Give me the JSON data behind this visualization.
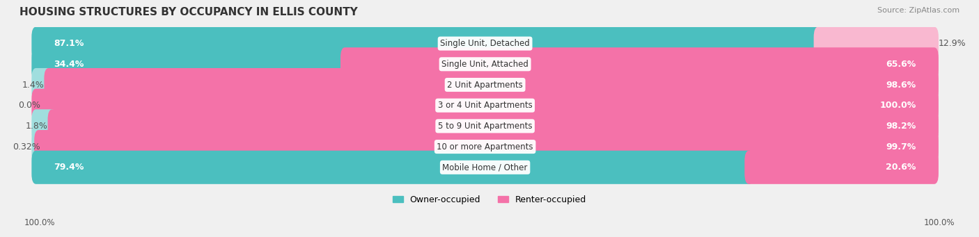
{
  "title": "HOUSING STRUCTURES BY OCCUPANCY IN ELLIS COUNTY",
  "source": "Source: ZipAtlas.com",
  "categories": [
    "Single Unit, Detached",
    "Single Unit, Attached",
    "2 Unit Apartments",
    "3 or 4 Unit Apartments",
    "5 to 9 Unit Apartments",
    "10 or more Apartments",
    "Mobile Home / Other"
  ],
  "owner_pct": [
    87.1,
    34.4,
    1.4,
    0.0,
    1.8,
    0.32,
    79.4
  ],
  "renter_pct": [
    12.9,
    65.6,
    98.6,
    100.0,
    98.2,
    99.7,
    20.6
  ],
  "owner_labels": [
    "87.1%",
    "34.4%",
    "1.4%",
    "0.0%",
    "1.8%",
    "0.32%",
    "79.4%"
  ],
  "renter_labels": [
    "12.9%",
    "65.6%",
    "98.6%",
    "100.0%",
    "98.2%",
    "99.7%",
    "20.6%"
  ],
  "owner_color": "#4bbfbf",
  "renter_color": "#f472a8",
  "renter_light_color": "#f9b8d0",
  "owner_light_color": "#a0dede",
  "bg_color": "#f0f0f0",
  "bar_bg": "#e8e8e8",
  "row_bg": "#f7f7f7",
  "label_fontsize": 9,
  "title_fontsize": 11,
  "legend_fontsize": 9,
  "axis_label_bottom_left": "100.0%",
  "axis_label_bottom_right": "100.0%"
}
